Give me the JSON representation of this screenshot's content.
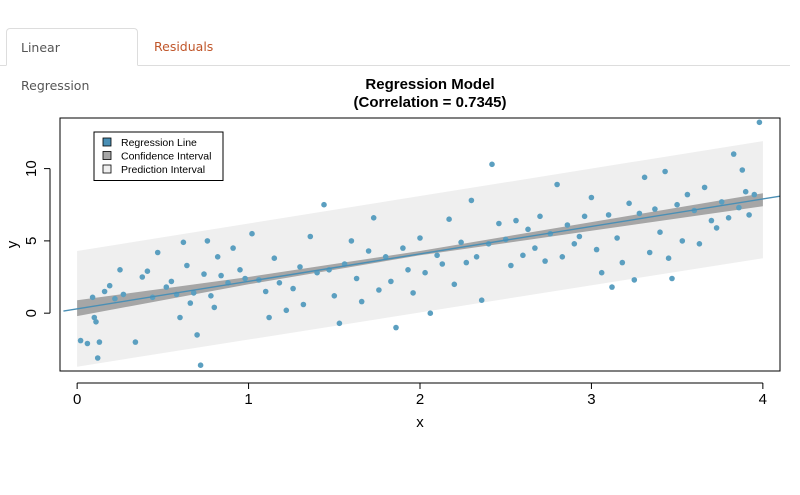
{
  "tabs": [
    {
      "label": "Linear Regression",
      "active": true
    },
    {
      "label": "Residuals",
      "active": false
    }
  ],
  "colors": {
    "point": "#5b9fc0",
    "line": "#4a8fb5",
    "confidence_band": "#a6a6a6",
    "prediction_band": "#efefef",
    "inactive_tab": "#c0562a"
  },
  "chart_data": {
    "type": "scatter",
    "title": "Regression Model",
    "subtitle": "(Correlation = 0.7345)",
    "xlabel": "x",
    "ylabel": "y",
    "xlim": [
      -0.1,
      4.1
    ],
    "ylim": [
      -4,
      13.5
    ],
    "xticks": [
      0,
      1,
      2,
      3,
      4
    ],
    "yticks": [
      0,
      5,
      10
    ],
    "grid": false,
    "legend_position": "top-left",
    "legend": [
      {
        "label": "Regression Line",
        "swatch": "line"
      },
      {
        "label": "Confidence Interval",
        "swatch": "confidence"
      },
      {
        "label": "Prediction Interval",
        "swatch": "prediction"
      }
    ],
    "regression": {
      "intercept": 0.3,
      "slope": 1.9
    },
    "confidence_interval": {
      "x": [
        0.0,
        1.0,
        2.0,
        3.0,
        4.0
      ],
      "lower": [
        -0.2,
        2.0,
        4.0,
        5.7,
        7.4
      ],
      "upper": [
        0.9,
        2.5,
        4.3,
        6.3,
        8.3
      ]
    },
    "prediction_interval": {
      "x": [
        0.0,
        4.0
      ],
      "lower": [
        -3.7,
        3.8
      ],
      "upper": [
        4.3,
        11.9
      ]
    },
    "points": [
      [
        0.02,
        -1.9
      ],
      [
        0.06,
        -2.1
      ],
      [
        0.09,
        1.1
      ],
      [
        0.1,
        -0.3
      ],
      [
        0.11,
        -0.6
      ],
      [
        0.12,
        -3.1
      ],
      [
        0.13,
        -2.0
      ],
      [
        0.16,
        1.5
      ],
      [
        0.19,
        1.9
      ],
      [
        0.22,
        1.0
      ],
      [
        0.25,
        3.0
      ],
      [
        0.27,
        1.3
      ],
      [
        0.34,
        -2.0
      ],
      [
        0.38,
        2.5
      ],
      [
        0.41,
        2.9
      ],
      [
        0.44,
        1.1
      ],
      [
        0.47,
        4.2
      ],
      [
        0.52,
        1.8
      ],
      [
        0.55,
        2.2
      ],
      [
        0.58,
        1.3
      ],
      [
        0.6,
        -0.3
      ],
      [
        0.62,
        4.9
      ],
      [
        0.64,
        3.3
      ],
      [
        0.66,
        0.7
      ],
      [
        0.68,
        1.4
      ],
      [
        0.7,
        -1.5
      ],
      [
        0.72,
        -3.6
      ],
      [
        0.74,
        2.7
      ],
      [
        0.76,
        5.0
      ],
      [
        0.78,
        1.2
      ],
      [
        0.8,
        0.4
      ],
      [
        0.82,
        3.9
      ],
      [
        0.84,
        2.6
      ],
      [
        0.88,
        2.1
      ],
      [
        0.91,
        4.5
      ],
      [
        0.95,
        3.0
      ],
      [
        0.98,
        2.4
      ],
      [
        1.02,
        5.5
      ],
      [
        1.06,
        2.3
      ],
      [
        1.1,
        1.5
      ],
      [
        1.12,
        -0.3
      ],
      [
        1.15,
        3.8
      ],
      [
        1.18,
        2.1
      ],
      [
        1.22,
        0.2
      ],
      [
        1.26,
        1.7
      ],
      [
        1.3,
        3.2
      ],
      [
        1.32,
        0.6
      ],
      [
        1.36,
        5.3
      ],
      [
        1.4,
        2.8
      ],
      [
        1.44,
        7.5
      ],
      [
        1.47,
        3.0
      ],
      [
        1.5,
        1.2
      ],
      [
        1.53,
        -0.7
      ],
      [
        1.56,
        3.4
      ],
      [
        1.6,
        5.0
      ],
      [
        1.63,
        2.4
      ],
      [
        1.66,
        0.8
      ],
      [
        1.7,
        4.3
      ],
      [
        1.73,
        6.6
      ],
      [
        1.76,
        1.6
      ],
      [
        1.8,
        3.9
      ],
      [
        1.83,
        2.2
      ],
      [
        1.86,
        -1.0
      ],
      [
        1.9,
        4.5
      ],
      [
        1.93,
        3.0
      ],
      [
        1.96,
        1.4
      ],
      [
        2.0,
        5.2
      ],
      [
        2.03,
        2.8
      ],
      [
        2.06,
        0.0
      ],
      [
        2.1,
        4.0
      ],
      [
        2.13,
        3.4
      ],
      [
        2.17,
        6.5
      ],
      [
        2.2,
        2.0
      ],
      [
        2.24,
        4.9
      ],
      [
        2.27,
        3.5
      ],
      [
        2.3,
        7.8
      ],
      [
        2.33,
        3.9
      ],
      [
        2.36,
        0.9
      ],
      [
        2.4,
        4.8
      ],
      [
        2.42,
        10.3
      ],
      [
        2.46,
        6.2
      ],
      [
        2.5,
        5.1
      ],
      [
        2.53,
        3.3
      ],
      [
        2.56,
        6.4
      ],
      [
        2.6,
        4.0
      ],
      [
        2.63,
        5.8
      ],
      [
        2.67,
        4.5
      ],
      [
        2.7,
        6.7
      ],
      [
        2.73,
        3.6
      ],
      [
        2.76,
        5.5
      ],
      [
        2.8,
        8.9
      ],
      [
        2.83,
        3.9
      ],
      [
        2.86,
        6.1
      ],
      [
        2.9,
        4.8
      ],
      [
        2.93,
        5.3
      ],
      [
        2.96,
        6.7
      ],
      [
        3.0,
        8.0
      ],
      [
        3.03,
        4.4
      ],
      [
        3.06,
        2.8
      ],
      [
        3.1,
        6.8
      ],
      [
        3.12,
        1.8
      ],
      [
        3.15,
        5.2
      ],
      [
        3.18,
        3.5
      ],
      [
        3.22,
        7.6
      ],
      [
        3.25,
        2.3
      ],
      [
        3.28,
        6.9
      ],
      [
        3.31,
        9.4
      ],
      [
        3.34,
        4.2
      ],
      [
        3.37,
        7.2
      ],
      [
        3.4,
        5.6
      ],
      [
        3.43,
        9.8
      ],
      [
        3.45,
        3.8
      ],
      [
        3.47,
        2.4
      ],
      [
        3.5,
        7.5
      ],
      [
        3.53,
        5.0
      ],
      [
        3.56,
        8.2
      ],
      [
        3.6,
        7.1
      ],
      [
        3.63,
        4.8
      ],
      [
        3.66,
        8.7
      ],
      [
        3.7,
        6.4
      ],
      [
        3.73,
        5.9
      ],
      [
        3.76,
        7.7
      ],
      [
        3.8,
        6.6
      ],
      [
        3.83,
        11.0
      ],
      [
        3.86,
        7.3
      ],
      [
        3.88,
        9.9
      ],
      [
        3.9,
        8.4
      ],
      [
        3.92,
        6.8
      ],
      [
        3.95,
        8.2
      ],
      [
        3.98,
        13.2
      ]
    ]
  }
}
